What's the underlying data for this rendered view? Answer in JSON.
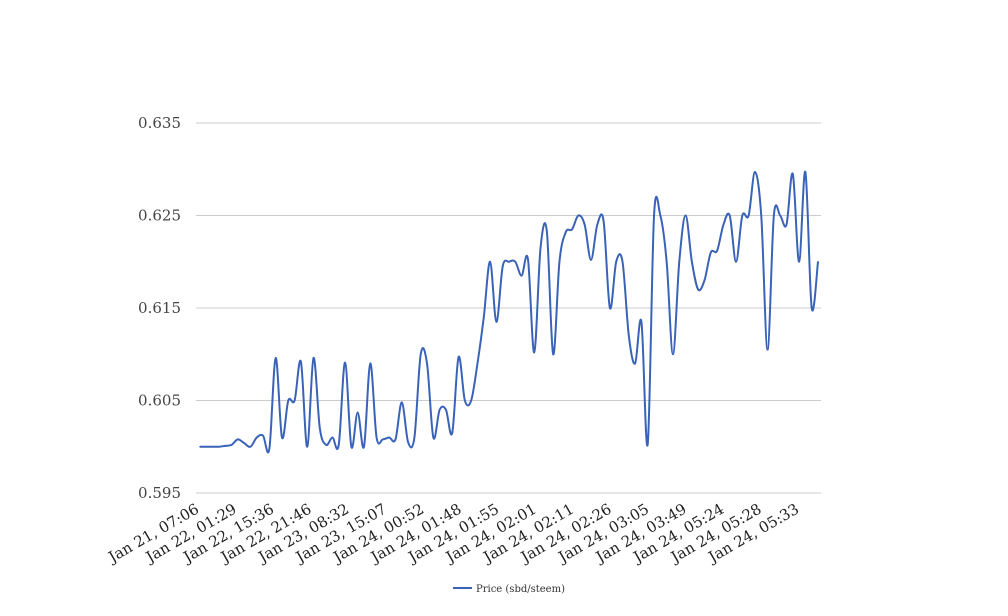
{
  "chart_data": {
    "type": "line",
    "title": "",
    "xlabel": "",
    "ylabel": "",
    "ylim": [
      0.595,
      0.635
    ],
    "y_ticks": [
      "0.635",
      "0.625",
      "0.615",
      "0.605",
      "0.595"
    ],
    "x_tick_labels": [
      "Jan 21, 07:06",
      "Jan 22, 01:29",
      "Jan 22, 15:36",
      "Jan 22, 21:46",
      "Jan 23, 08:32",
      "Jan 23, 15:07",
      "Jan 24, 00:52",
      "Jan 24, 01:48",
      "Jan 24, 01:55",
      "Jan 24, 02:01",
      "Jan 24, 02:11",
      "Jan 24, 02:26",
      "Jan 24, 03:05",
      "Jan 24, 03:49",
      "Jan 24, 05:24",
      "Jan 24, 05:28",
      "Jan 24, 05:33"
    ],
    "grid": true,
    "legend_position": "bottom",
    "series": [
      {
        "name": "Price (sbd/steem)",
        "color": "#3a63b8",
        "values": [
          0.6,
          0.6,
          0.6,
          0.6,
          0.6001,
          0.6002,
          0.6008,
          0.6004,
          0.6,
          0.601,
          0.6012,
          0.5998,
          0.6096,
          0.601,
          0.605,
          0.605,
          0.6092,
          0.6,
          0.6096,
          0.602,
          0.6002,
          0.601,
          0.6002,
          0.6091,
          0.6,
          0.6037,
          0.6,
          0.609,
          0.601,
          0.6008,
          0.601,
          0.6008,
          0.6048,
          0.6005,
          0.601,
          0.61,
          0.609,
          0.601,
          0.604,
          0.604,
          0.6015,
          0.6097,
          0.605,
          0.605,
          0.609,
          0.614,
          0.62,
          0.6135,
          0.6195,
          0.62,
          0.62,
          0.6185,
          0.6203,
          0.6102,
          0.6215,
          0.6233,
          0.61,
          0.62,
          0.6232,
          0.6235,
          0.625,
          0.624,
          0.6202,
          0.624,
          0.6244,
          0.615,
          0.62,
          0.62,
          0.612,
          0.609,
          0.6135,
          0.6003,
          0.625,
          0.625,
          0.62,
          0.61,
          0.62,
          0.625,
          0.62,
          0.617,
          0.618,
          0.621,
          0.6212,
          0.624,
          0.625,
          0.62,
          0.625,
          0.625,
          0.6297,
          0.625,
          0.6105,
          0.625,
          0.625,
          0.624,
          0.6295,
          0.62,
          0.6297,
          0.615,
          0.62
        ]
      }
    ]
  }
}
